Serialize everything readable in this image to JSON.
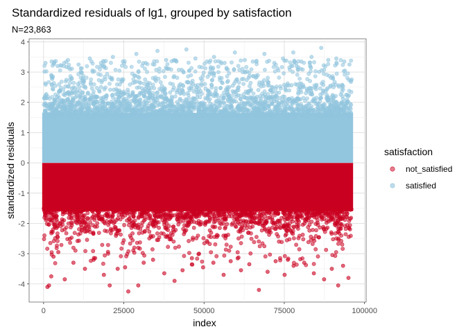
{
  "chart_data": {
    "type": "scatter",
    "title": "Standardized residuals of lg1, grouped by satisfaction",
    "subtitle": "N=23,863",
    "xlabel": "index",
    "ylabel": "standardized residuals",
    "xlim": [
      -4500,
      100500
    ],
    "ylim": [
      -4.6,
      4.1
    ],
    "xticks": [
      0,
      25000,
      50000,
      75000,
      100000
    ],
    "xtick_labels": [
      "0",
      "25000",
      "50000",
      "75000",
      "100000"
    ],
    "yticks": [
      -4,
      -3,
      -2,
      -1,
      0,
      1,
      2,
      3,
      4
    ],
    "ytick_labels": [
      "-4",
      "-3",
      "-2",
      "-1",
      "0",
      "1",
      "2",
      "3",
      "4"
    ],
    "grid": true,
    "legend": {
      "title": "satisfaction",
      "position": "right",
      "entries": [
        {
          "label": "not_satisfied",
          "color": "#CA0020"
        },
        {
          "label": "satisfied",
          "color": "#92C5DE"
        }
      ]
    },
    "series": [
      {
        "name": "not_satisfied",
        "color": "#CA0020",
        "dense_band": {
          "x_range": [
            0,
            96000
          ],
          "y_range": [
            -1.55,
            -0.05
          ]
        },
        "outliers": [
          [
            1200,
            -4.1
          ],
          [
            1700,
            -4.05
          ],
          [
            2400,
            -3.75
          ],
          [
            3100,
            -3.1
          ],
          [
            4600,
            -2.95
          ],
          [
            6600,
            -3.85
          ],
          [
            9300,
            -3.3
          ],
          [
            12900,
            -3.5
          ],
          [
            15600,
            -3.2
          ],
          [
            18800,
            -3.7
          ],
          [
            20600,
            -4.05
          ],
          [
            23100,
            -3.5
          ],
          [
            25400,
            -3.45
          ],
          [
            26400,
            -4.25
          ],
          [
            29500,
            -4.05
          ],
          [
            31200,
            -3.3
          ],
          [
            34100,
            -3.2
          ],
          [
            37600,
            -3.65
          ],
          [
            40800,
            -3.9
          ],
          [
            43300,
            -3.55
          ],
          [
            46200,
            -3.15
          ],
          [
            49700,
            -3.45
          ],
          [
            52900,
            -3.3
          ],
          [
            56100,
            -3.7
          ],
          [
            58300,
            -3.25
          ],
          [
            61500,
            -3.55
          ],
          [
            64100,
            -3.35
          ],
          [
            67100,
            -4.2
          ],
          [
            69800,
            -3.6
          ],
          [
            72300,
            -3.25
          ],
          [
            75100,
            -3.7
          ],
          [
            77900,
            -3.4
          ],
          [
            81200,
            -3.3
          ],
          [
            84200,
            -3.65
          ],
          [
            87400,
            -3.85
          ],
          [
            89800,
            -3.5
          ],
          [
            91800,
            -4.05
          ],
          [
            93300,
            -3.4
          ],
          [
            95000,
            -3.8
          ]
        ]
      },
      {
        "name": "satisfied",
        "color": "#92C5DE",
        "dense_band": {
          "x_range": [
            0,
            96000
          ],
          "y_range": [
            0.05,
            1.6
          ]
        },
        "outliers": [
          [
            600,
            3.3
          ],
          [
            2500,
            3.35
          ],
          [
            4400,
            3.2
          ],
          [
            7600,
            3.4
          ],
          [
            10900,
            3.25
          ],
          [
            14400,
            3.45
          ],
          [
            17900,
            3.3
          ],
          [
            21600,
            3.5
          ],
          [
            24700,
            3.35
          ],
          [
            28900,
            3.6
          ],
          [
            31800,
            3.3
          ],
          [
            35500,
            3.7
          ],
          [
            38200,
            3.4
          ],
          [
            41400,
            3.35
          ],
          [
            44500,
            3.75
          ],
          [
            47300,
            3.45
          ],
          [
            50900,
            3.35
          ],
          [
            53100,
            3.5
          ],
          [
            56400,
            3.3
          ],
          [
            59600,
            3.65
          ],
          [
            62700,
            3.4
          ],
          [
            65200,
            3.35
          ],
          [
            68800,
            3.6
          ],
          [
            71900,
            3.3
          ],
          [
            74600,
            3.45
          ],
          [
            77800,
            3.65
          ],
          [
            80300,
            3.35
          ],
          [
            83500,
            3.5
          ],
          [
            86500,
            3.8
          ],
          [
            88700,
            3.4
          ],
          [
            91200,
            3.45
          ],
          [
            93700,
            3.35
          ],
          [
            95300,
            3.25
          ]
        ]
      }
    ]
  }
}
